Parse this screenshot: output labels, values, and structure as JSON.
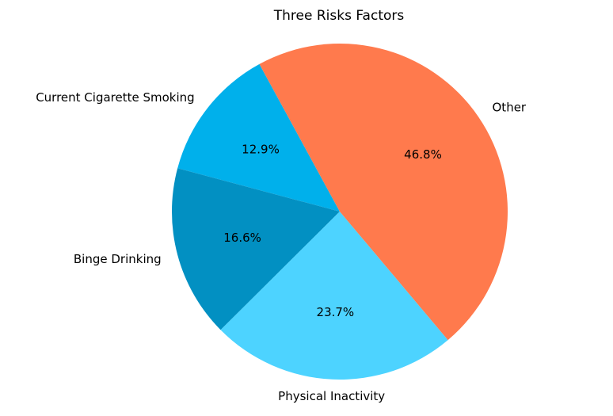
{
  "chart_data": {
    "type": "pie",
    "title": "Three Risks Factors",
    "categories": [
      "Current Cigarette Smoking",
      "Binge Drinking",
      "Physical Inactivity",
      "Other"
    ],
    "values": [
      12.9,
      16.6,
      23.7,
      46.8
    ],
    "value_labels": [
      "12.9%",
      "16.6%",
      "23.7%",
      "46.8%"
    ],
    "colors": [
      "#00b0eb",
      "#0290c2",
      "#4dd3ff",
      "#ff7a4d"
    ],
    "start_angle_deg": 118.6,
    "direction": "counterclockwise",
    "legend": "none"
  }
}
